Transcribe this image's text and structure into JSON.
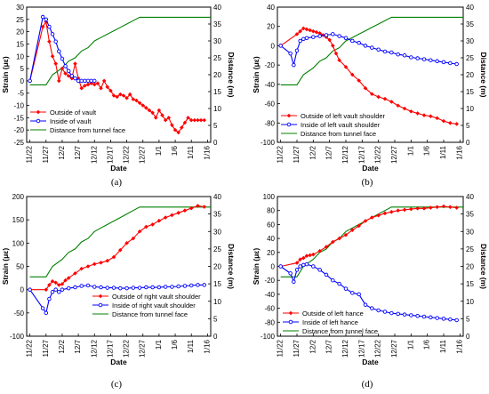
{
  "figure": {
    "panels": [
      "a",
      "b",
      "c",
      "d"
    ],
    "series_colors": {
      "outside": "#ff0000",
      "inside": "#0000ff",
      "distance": "#008000"
    }
  },
  "chart_data": [
    {
      "type": "line",
      "panel_label": "(a)",
      "xlabel": "Date",
      "ylabel": "Strain (με)",
      "y2label": "Distance (m)",
      "xtick_labels": [
        "11/22",
        "11/27",
        "12/2",
        "12/7",
        "12/12",
        "12/17",
        "12/22",
        "12/27",
        "1/1",
        "1/6",
        "1/11",
        "1/16"
      ],
      "x_axis_days": [
        0,
        5,
        10,
        15,
        20,
        25,
        30,
        35,
        40,
        45,
        50,
        55
      ],
      "ylim": [
        -25,
        30
      ],
      "yticks": [
        -25,
        -20,
        -15,
        -10,
        -5,
        0,
        5,
        10,
        15,
        20,
        25,
        30
      ],
      "y2lim": [
        0,
        40
      ],
      "y2ticks": [
        0,
        5,
        10,
        15,
        20,
        25,
        30,
        35,
        40
      ],
      "legend_position": "bottom-left",
      "series": [
        {
          "name": "Outside of vault",
          "axis": "left",
          "color": "#ff0000",
          "marker": "diamond",
          "x": [
            0,
            4,
            5,
            6,
            7,
            8,
            9,
            10,
            11,
            12,
            13,
            14,
            15,
            16,
            17,
            18,
            19,
            20,
            21,
            22,
            23,
            24,
            25,
            26,
            27,
            28,
            29,
            30,
            31,
            32,
            33,
            34,
            35,
            36,
            37,
            38,
            39,
            40,
            41,
            42,
            43,
            44,
            45,
            46,
            47,
            48,
            49,
            50,
            51,
            52,
            53,
            54
          ],
          "y": [
            0,
            22,
            24,
            16,
            10,
            7,
            0,
            5,
            3,
            2,
            1,
            7,
            1,
            -3,
            -2,
            -1.5,
            -1,
            -1.5,
            -1,
            -3,
            0,
            -2.5,
            -4,
            -6,
            -6.5,
            -5.5,
            -6,
            -7,
            -5.5,
            -7.5,
            -8,
            -9,
            -10,
            -11,
            -12,
            -13,
            -15,
            -12,
            -14,
            -16,
            -15,
            -18,
            -20,
            -21,
            -19,
            -17,
            -15,
            -16,
            -16,
            -16,
            -16,
            -16
          ]
        },
        {
          "name": "Inside of vault",
          "axis": "left",
          "color": "#0000ff",
          "marker": "circle",
          "x": [
            0,
            4,
            5,
            6,
            7,
            8,
            9,
            10,
            11,
            12,
            13,
            14,
            15,
            16,
            17,
            18,
            19,
            20
          ],
          "y": [
            0,
            26,
            25,
            22,
            19,
            16,
            12,
            9,
            6,
            4,
            2,
            1,
            0,
            0,
            0,
            0,
            0,
            0
          ]
        },
        {
          "name": "Distance from tunnel face",
          "axis": "right",
          "color": "#008000",
          "marker": "none",
          "x": [
            0,
            5,
            7,
            10,
            12,
            14,
            16,
            18,
            20,
            22,
            24,
            26,
            28,
            30,
            32,
            34,
            56
          ],
          "y": [
            17,
            17,
            20,
            22,
            24,
            25,
            27,
            28,
            30,
            31,
            32,
            33,
            34,
            35,
            36,
            37,
            37
          ]
        }
      ]
    },
    {
      "type": "line",
      "panel_label": "(b)",
      "xlabel": "Date",
      "ylabel": "Strain (με)",
      "y2label": "Distance (m)",
      "xtick_labels": [
        "11/22",
        "11/27",
        "12/2",
        "12/7",
        "12/12",
        "12/17",
        "12/22",
        "12/27",
        "1/1",
        "1/6",
        "1/11",
        "1/16"
      ],
      "x_axis_days": [
        0,
        5,
        10,
        15,
        20,
        25,
        30,
        35,
        40,
        45,
        50,
        55
      ],
      "ylim": [
        -100,
        40
      ],
      "yticks": [
        -100,
        -80,
        -60,
        -40,
        -20,
        0,
        20,
        40
      ],
      "y2lim": [
        0,
        40
      ],
      "y2ticks": [
        0,
        5,
        10,
        15,
        20,
        25,
        30,
        35,
        40
      ],
      "legend_position": "bottom-left",
      "series": [
        {
          "name": "Outside of left vault shoulder",
          "axis": "left",
          "color": "#ff0000",
          "marker": "diamond",
          "x": [
            0,
            5,
            6,
            7,
            8,
            9,
            10,
            11,
            12,
            13,
            14,
            15,
            16,
            17,
            18,
            20,
            22,
            24,
            26,
            28,
            30,
            32,
            34,
            36,
            38,
            40,
            42,
            44,
            46,
            48,
            50,
            52,
            54
          ],
          "y": [
            0,
            12,
            15,
            18,
            17,
            16,
            15,
            14,
            13,
            11,
            9,
            6,
            0,
            -8,
            -15,
            -22,
            -30,
            -36,
            -44,
            -50,
            -53,
            -55,
            -58,
            -62,
            -65,
            -68,
            -70,
            -72,
            -73,
            -75,
            -78,
            -80,
            -81
          ]
        },
        {
          "name": "Inside of left vault shoulder",
          "axis": "left",
          "color": "#0000ff",
          "marker": "circle",
          "x": [
            0,
            3,
            4,
            5,
            6,
            7,
            8,
            10,
            12,
            14,
            16,
            18,
            20,
            22,
            24,
            26,
            28,
            30,
            32,
            34,
            36,
            38,
            40,
            42,
            44,
            46,
            48,
            50,
            52,
            54
          ],
          "y": [
            0,
            -8,
            -20,
            -5,
            5,
            7,
            8,
            9,
            10,
            11,
            12,
            10,
            8,
            5,
            3,
            0,
            -2,
            -4,
            -6,
            -7,
            -9,
            -10,
            -12,
            -13,
            -14,
            -15,
            -16,
            -17,
            -18,
            -19
          ]
        },
        {
          "name": "Distance from tunnel face",
          "axis": "right",
          "color": "#008000",
          "marker": "none",
          "x": [
            0,
            5,
            7,
            10,
            12,
            14,
            16,
            18,
            20,
            22,
            24,
            26,
            28,
            30,
            32,
            34,
            56
          ],
          "y": [
            17,
            17,
            20,
            22,
            24,
            25,
            27,
            28,
            30,
            31,
            32,
            33,
            34,
            35,
            36,
            37,
            37
          ]
        }
      ]
    },
    {
      "type": "line",
      "panel_label": "(c)",
      "xlabel": "Date",
      "ylabel": "Strain (με)",
      "y2label": "Distance (m)",
      "xtick_labels": [
        "11/22",
        "11/27",
        "12/2",
        "12/7",
        "12/12",
        "12/17",
        "12/22",
        "12/27",
        "1/1",
        "1/6",
        "1/11",
        "1/16"
      ],
      "x_axis_days": [
        0,
        5,
        10,
        15,
        20,
        25,
        30,
        35,
        40,
        45,
        50,
        55
      ],
      "ylim": [
        -100,
        200
      ],
      "yticks": [
        -100,
        -50,
        0,
        50,
        100,
        150,
        200
      ],
      "y2lim": [
        0,
        40
      ],
      "y2ticks": [
        0,
        5,
        10,
        15,
        20,
        25,
        30,
        35,
        40
      ],
      "legend_position": "bottom-right",
      "series": [
        {
          "name": "Outside of right vault shoulder",
          "axis": "left",
          "color": "#ff0000",
          "marker": "diamond",
          "x": [
            0,
            5,
            6,
            7,
            8,
            9,
            10,
            11,
            12,
            14,
            16,
            18,
            20,
            22,
            24,
            26,
            28,
            30,
            32,
            34,
            36,
            38,
            40,
            42,
            44,
            46,
            48,
            50,
            52,
            54
          ],
          "y": [
            0,
            0,
            10,
            18,
            15,
            10,
            12,
            20,
            25,
            35,
            45,
            50,
            55,
            58,
            62,
            70,
            85,
            100,
            110,
            125,
            135,
            140,
            148,
            155,
            160,
            165,
            170,
            175,
            180,
            178
          ]
        },
        {
          "name": "Inside of right vault shoulder",
          "axis": "left",
          "color": "#0000ff",
          "marker": "circle",
          "x": [
            0,
            4,
            5,
            6,
            7,
            8,
            9,
            10,
            12,
            14,
            16,
            18,
            20,
            22,
            24,
            26,
            28,
            30,
            32,
            34,
            36,
            38,
            40,
            42,
            44,
            46,
            48,
            50,
            52,
            54
          ],
          "y": [
            0,
            -40,
            -50,
            -20,
            -5,
            0,
            -5,
            0,
            3,
            5,
            8,
            9,
            6,
            5,
            4,
            4,
            3,
            3,
            4,
            4,
            5,
            5,
            5,
            6,
            6,
            7,
            8,
            9,
            10,
            10
          ]
        },
        {
          "name": "Distance from tunnel face",
          "axis": "right",
          "color": "#008000",
          "marker": "none",
          "x": [
            0,
            5,
            7,
            10,
            12,
            14,
            16,
            18,
            20,
            22,
            24,
            26,
            28,
            30,
            32,
            34,
            56
          ],
          "y": [
            17,
            17,
            20,
            22,
            24,
            25,
            27,
            28,
            30,
            31,
            32,
            33,
            34,
            35,
            36,
            37,
            37
          ]
        }
      ]
    },
    {
      "type": "line",
      "panel_label": "(d)",
      "xlabel": "Date",
      "ylabel": "Strain (με)",
      "y2label": "Distance (m)",
      "xtick_labels": [
        "11/22",
        "11/27",
        "12/2",
        "12/7",
        "12/12",
        "12/17",
        "12/22",
        "12/27",
        "1/1",
        "1/6",
        "1/11",
        "1/16"
      ],
      "x_axis_days": [
        0,
        5,
        10,
        15,
        20,
        25,
        30,
        35,
        40,
        45,
        50,
        55
      ],
      "ylim": [
        -100,
        100
      ],
      "yticks": [
        -100,
        -80,
        -60,
        -40,
        -20,
        0,
        20,
        40,
        60,
        80,
        100
      ],
      "y2lim": [
        0,
        40
      ],
      "y2ticks": [
        0,
        5,
        10,
        15,
        20,
        25,
        30,
        35,
        40
      ],
      "legend_position": "bottom-left",
      "series": [
        {
          "name": "Outside of left hance",
          "axis": "left",
          "color": "#ff0000",
          "marker": "diamond",
          "x": [
            0,
            5,
            6,
            7,
            8,
            9,
            10,
            12,
            14,
            16,
            18,
            20,
            22,
            24,
            26,
            28,
            30,
            32,
            34,
            36,
            38,
            40,
            42,
            44,
            46,
            48,
            50,
            52,
            54
          ],
          "y": [
            0,
            5,
            10,
            12,
            15,
            16,
            17,
            22,
            28,
            35,
            40,
            45,
            52,
            58,
            65,
            70,
            73,
            76,
            78,
            80,
            81,
            82,
            83,
            83,
            84,
            85,
            86,
            85,
            84
          ]
        },
        {
          "name": "Inside of left hance",
          "axis": "left",
          "color": "#0000ff",
          "marker": "circle",
          "x": [
            0,
            3,
            4,
            5,
            6,
            7,
            8,
            10,
            12,
            14,
            16,
            18,
            20,
            22,
            24,
            26,
            28,
            30,
            32,
            34,
            36,
            38,
            40,
            42,
            44,
            46,
            48,
            50,
            52,
            54
          ],
          "y": [
            0,
            -10,
            -22,
            -5,
            0,
            2,
            3,
            0,
            -5,
            -12,
            -20,
            -25,
            -32,
            -38,
            -40,
            -55,
            -60,
            -63,
            -65,
            -67,
            -68,
            -69,
            -70,
            -71,
            -72,
            -73,
            -74,
            -75,
            -76,
            -77
          ]
        },
        {
          "name": "Distance from tunnel face",
          "axis": "right",
          "color": "#008000",
          "marker": "none",
          "x": [
            0,
            5,
            7,
            10,
            12,
            14,
            16,
            18,
            20,
            22,
            24,
            26,
            28,
            30,
            32,
            34,
            56
          ],
          "y": [
            17,
            17,
            20,
            22,
            24,
            25,
            27,
            28,
            30,
            31,
            32,
            33,
            34,
            35,
            36,
            37,
            37
          ]
        }
      ]
    }
  ]
}
